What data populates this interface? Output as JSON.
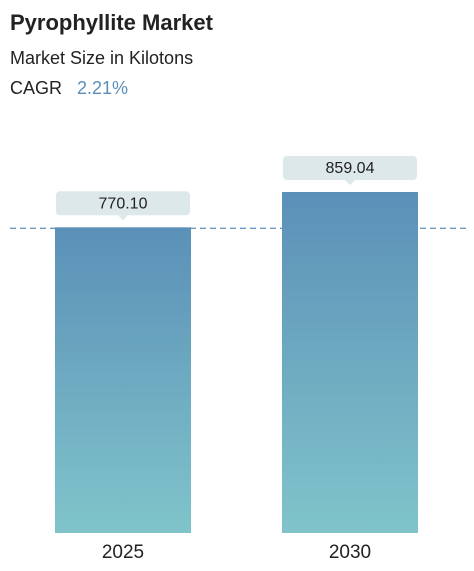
{
  "chart_data": {
    "type": "bar",
    "title": "Pyrophyllite Market",
    "subtitle": "Market Size in Kilotons",
    "cagr_label": "CAGR",
    "cagr_value": "2.21%",
    "categories": [
      "2025",
      "2030"
    ],
    "values": [
      770.1,
      859.04
    ],
    "value_labels": [
      "770.10",
      "859.04"
    ],
    "color_top": "#5b90b8",
    "color_bottom": "#80c4ca"
  }
}
